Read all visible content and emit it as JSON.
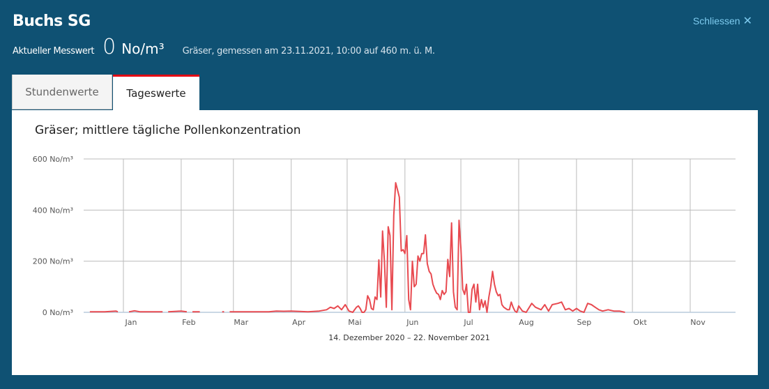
{
  "header": {
    "title": "Buchs SG",
    "close_label": "Schliessen",
    "close_icon": "close-x-icon",
    "current_label": "Aktueller Messwert",
    "current_value": "0",
    "current_unit": "No/m³",
    "info": "Gräser, gemessen am 23.11.2021, 10:00 auf 460 m. ü. M."
  },
  "tabs": [
    {
      "label": "Stundenwerte",
      "active": false
    },
    {
      "label": "Tageswerte",
      "active": true
    }
  ],
  "colors": {
    "background": "#0f5173",
    "line": "#e84a50",
    "active_tab": "#e30613",
    "close_link": "#7ecbef"
  },
  "chart_data": {
    "type": "line",
    "title": "Gräser; mittlere tägliche Pollenkonzentration",
    "xlabel": "14. Dezember 2020 – 22. November 2021",
    "ylabel": "",
    "ylim": [
      0,
      600
    ],
    "xlim": [
      "2020-12-14",
      "2021-11-22"
    ],
    "yticks": [
      "0 No/m³",
      "200 No/m³",
      "400 No/m³",
      "600 No/m³"
    ],
    "ytick_values": [
      0,
      200,
      400,
      600
    ],
    "xticks": [
      {
        "label": "Jan",
        "date": "2021-01-01"
      },
      {
        "label": "Feb",
        "date": "2021-02-01"
      },
      {
        "label": "Mar",
        "date": "2021-03-01"
      },
      {
        "label": "Apr",
        "date": "2021-04-01"
      },
      {
        "label": "Mai",
        "date": "2021-05-01"
      },
      {
        "label": "Jun",
        "date": "2021-06-01"
      },
      {
        "label": "Jul",
        "date": "2021-07-01"
      },
      {
        "label": "Aug",
        "date": "2021-08-01"
      },
      {
        "label": "Sep",
        "date": "2021-09-01"
      },
      {
        "label": "Okt",
        "date": "2021-10-01"
      },
      {
        "label": "Nov",
        "date": "2021-11-01"
      }
    ],
    "grid": true,
    "series": [
      {
        "points": [
          [
            "2020-12-14",
            2
          ],
          [
            "2020-12-22",
            2
          ],
          [
            "2020-12-28",
            5
          ],
          [
            "2020-12-29",
            2
          ],
          [
            "2020-12-30",
            null
          ],
          [
            "2021-01-04",
            2
          ],
          [
            "2021-01-07",
            6
          ],
          [
            "2021-01-10",
            2
          ],
          [
            "2021-01-22",
            2
          ],
          [
            "2021-01-23",
            null
          ],
          [
            "2021-01-25",
            2
          ],
          [
            "2021-02-01",
            5
          ],
          [
            "2021-02-04",
            2
          ],
          [
            "2021-02-05",
            null
          ],
          [
            "2021-02-07",
            2
          ],
          [
            "2021-02-11",
            2
          ],
          [
            "2021-02-12",
            null
          ],
          [
            "2021-02-20",
            2
          ],
          [
            "2021-02-21",
            null
          ],
          [
            "2021-02-23",
            2
          ],
          [
            "2021-02-24",
            2
          ],
          [
            "2021-02-25",
            null
          ],
          [
            "2021-02-27",
            2
          ],
          [
            "2021-03-20",
            2
          ],
          [
            "2021-03-24",
            5
          ],
          [
            "2021-03-28",
            4
          ],
          [
            "2021-04-01",
            5
          ],
          [
            "2021-04-10",
            2
          ],
          [
            "2021-04-16",
            5
          ],
          [
            "2021-04-20",
            10
          ],
          [
            "2021-04-22",
            20
          ],
          [
            "2021-04-24",
            15
          ],
          [
            "2021-04-26",
            25
          ],
          [
            "2021-04-28",
            10
          ],
          [
            "2021-04-30",
            30
          ],
          [
            "2021-05-02",
            5
          ],
          [
            "2021-05-04",
            0
          ],
          [
            "2021-05-06",
            20
          ],
          [
            "2021-05-07",
            25
          ],
          [
            "2021-05-08",
            15
          ],
          [
            "2021-05-09",
            0
          ],
          [
            "2021-05-10",
            0
          ],
          [
            "2021-05-11",
            10
          ],
          [
            "2021-05-12",
            65
          ],
          [
            "2021-05-13",
            50
          ],
          [
            "2021-05-14",
            15
          ],
          [
            "2021-05-15",
            10
          ],
          [
            "2021-05-16",
            60
          ],
          [
            "2021-05-17",
            50
          ],
          [
            "2021-05-18",
            205
          ],
          [
            "2021-05-19",
            60
          ],
          [
            "2021-05-20",
            318
          ],
          [
            "2021-05-21",
            200
          ],
          [
            "2021-05-22",
            20
          ],
          [
            "2021-05-23",
            335
          ],
          [
            "2021-05-24",
            300
          ],
          [
            "2021-05-25",
            10
          ],
          [
            "2021-05-26",
            380
          ],
          [
            "2021-05-27",
            507
          ],
          [
            "2021-05-28",
            480
          ],
          [
            "2021-05-29",
            450
          ],
          [
            "2021-05-30",
            240
          ],
          [
            "2021-05-31",
            245
          ],
          [
            "2021-06-01",
            230
          ],
          [
            "2021-06-02",
            300
          ],
          [
            "2021-06-03",
            50
          ],
          [
            "2021-06-04",
            10
          ],
          [
            "2021-06-05",
            200
          ],
          [
            "2021-06-06",
            100
          ],
          [
            "2021-06-07",
            110
          ],
          [
            "2021-06-08",
            220
          ],
          [
            "2021-06-09",
            200
          ],
          [
            "2021-06-10",
            230
          ],
          [
            "2021-06-11",
            230
          ],
          [
            "2021-06-12",
            303
          ],
          [
            "2021-06-13",
            190
          ],
          [
            "2021-06-14",
            160
          ],
          [
            "2021-06-15",
            150
          ],
          [
            "2021-06-16",
            110
          ],
          [
            "2021-06-17",
            90
          ],
          [
            "2021-06-18",
            75
          ],
          [
            "2021-06-19",
            70
          ],
          [
            "2021-06-20",
            50
          ],
          [
            "2021-06-21",
            85
          ],
          [
            "2021-06-22",
            70
          ],
          [
            "2021-06-23",
            80
          ],
          [
            "2021-06-24",
            207
          ],
          [
            "2021-06-25",
            140
          ],
          [
            "2021-06-26",
            350
          ],
          [
            "2021-06-27",
            80
          ],
          [
            "2021-06-28",
            20
          ],
          [
            "2021-06-29",
            10
          ],
          [
            "2021-06-30",
            360
          ],
          [
            "2021-07-01",
            250
          ],
          [
            "2021-07-02",
            90
          ],
          [
            "2021-07-03",
            70
          ],
          [
            "2021-07-04",
            110
          ],
          [
            "2021-07-05",
            0
          ],
          [
            "2021-07-06",
            0
          ],
          [
            "2021-07-07",
            90
          ],
          [
            "2021-07-08",
            110
          ],
          [
            "2021-07-09",
            40
          ],
          [
            "2021-07-10",
            110
          ],
          [
            "2021-07-11",
            10
          ],
          [
            "2021-07-12",
            50
          ],
          [
            "2021-07-13",
            20
          ],
          [
            "2021-07-14",
            45
          ],
          [
            "2021-07-15",
            0
          ],
          [
            "2021-07-16",
            60
          ],
          [
            "2021-07-17",
            100
          ],
          [
            "2021-07-18",
            160
          ],
          [
            "2021-07-19",
            110
          ],
          [
            "2021-07-20",
            80
          ],
          [
            "2021-07-21",
            65
          ],
          [
            "2021-07-22",
            70
          ],
          [
            "2021-07-23",
            30
          ],
          [
            "2021-07-24",
            20
          ],
          [
            "2021-07-25",
            15
          ],
          [
            "2021-07-26",
            10
          ],
          [
            "2021-07-27",
            10
          ],
          [
            "2021-07-28",
            40
          ],
          [
            "2021-07-29",
            20
          ],
          [
            "2021-07-30",
            5
          ],
          [
            "2021-07-31",
            0
          ],
          [
            "2021-08-01",
            25
          ],
          [
            "2021-08-03",
            5
          ],
          [
            "2021-08-05",
            0
          ],
          [
            "2021-08-08",
            35
          ],
          [
            "2021-08-10",
            20
          ],
          [
            "2021-08-13",
            10
          ],
          [
            "2021-08-15",
            30
          ],
          [
            "2021-08-17",
            5
          ],
          [
            "2021-08-19",
            30
          ],
          [
            "2021-08-22",
            35
          ],
          [
            "2021-08-24",
            40
          ],
          [
            "2021-08-26",
            10
          ],
          [
            "2021-08-28",
            15
          ],
          [
            "2021-08-30",
            5
          ],
          [
            "2021-09-01",
            15
          ],
          [
            "2021-09-03",
            5
          ],
          [
            "2021-09-05",
            0
          ],
          [
            "2021-09-07",
            35
          ],
          [
            "2021-09-09",
            30
          ],
          [
            "2021-09-11",
            20
          ],
          [
            "2021-09-13",
            10
          ],
          [
            "2021-09-15",
            5
          ],
          [
            "2021-09-18",
            10
          ],
          [
            "2021-09-21",
            5
          ],
          [
            "2021-09-24",
            5
          ],
          [
            "2021-09-27",
            0
          ]
        ]
      }
    ]
  }
}
